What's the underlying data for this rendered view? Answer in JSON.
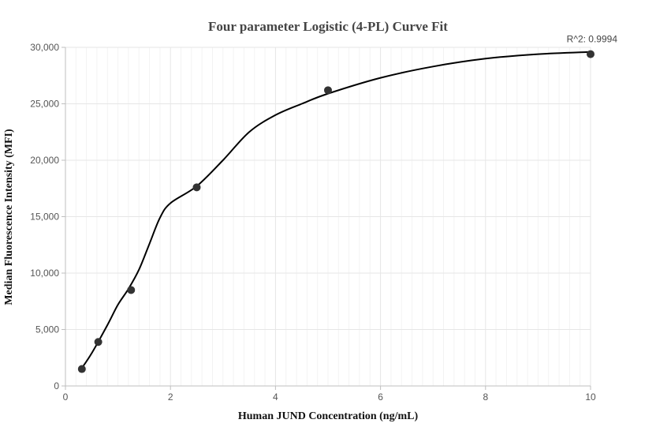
{
  "chart_data": {
    "type": "scatter",
    "title": "Four parameter Logistic (4-PL) Curve Fit",
    "xlabel": "Human JUND Concentration (ng/mL)",
    "ylabel": "Median Fluorescence Intensity (MFI)",
    "xlim": [
      0,
      10
    ],
    "ylim": [
      0,
      30000
    ],
    "x_ticks": [
      0,
      2,
      4,
      6,
      8,
      10
    ],
    "y_ticks": [
      0,
      5000,
      10000,
      15000,
      20000,
      25000,
      30000
    ],
    "x_tick_labels": [
      "0",
      "2",
      "4",
      "6",
      "8",
      "10"
    ],
    "y_tick_labels": [
      "0",
      "5,000",
      "10,000",
      "15,000",
      "20,000",
      "25,000",
      "30,000"
    ],
    "grid": true,
    "series": [
      {
        "kind": "points",
        "x": [
          0.3125,
          0.625,
          1.25,
          2.5,
          5,
          10
        ],
        "y": [
          1500,
          3900,
          8500,
          17600,
          26200,
          29400
        ]
      },
      {
        "kind": "fit-curve",
        "x": [
          0.3,
          0.5,
          0.8,
          1.0,
          1.2,
          1.4,
          1.6,
          1.8,
          2.0,
          2.5,
          3.0,
          3.5,
          4.0,
          4.5,
          5.0,
          6.0,
          7.0,
          8.0,
          9.0,
          10.0
        ],
        "y": [
          1500,
          2900,
          5400,
          7200,
          8600,
          10300,
          12600,
          14900,
          16200,
          17700,
          20000,
          22500,
          24000,
          25000,
          25900,
          27300,
          28300,
          29000,
          29400,
          29600
        ]
      }
    ],
    "annotations": [
      {
        "text": "R^2: 0.9994",
        "anchor_x": 10,
        "anchor_y": 29600
      }
    ],
    "colors": {
      "curve": "#000000",
      "points": "#333333",
      "grid_major": "#e6e6e6",
      "grid_minor": "#f3f3f3",
      "axis": "#bfbfbf"
    }
  }
}
